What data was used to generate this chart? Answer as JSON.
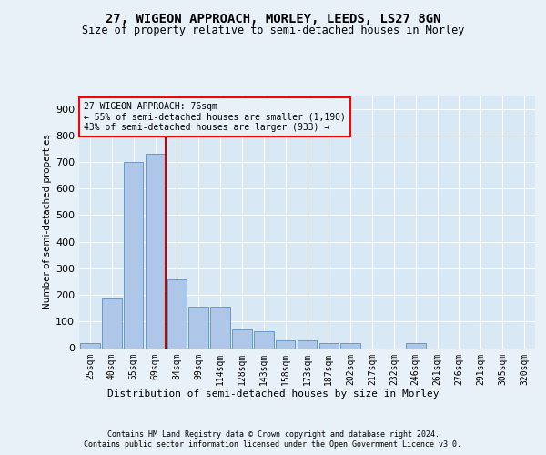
{
  "title1": "27, WIGEON APPROACH, MORLEY, LEEDS, LS27 8GN",
  "title2": "Size of property relative to semi-detached houses in Morley",
  "xlabel": "Distribution of semi-detached houses by size in Morley",
  "ylabel": "Number of semi-detached properties",
  "categories": [
    "25sqm",
    "40sqm",
    "55sqm",
    "69sqm",
    "84sqm",
    "99sqm",
    "114sqm",
    "128sqm",
    "143sqm",
    "158sqm",
    "173sqm",
    "187sqm",
    "202sqm",
    "217sqm",
    "232sqm",
    "246sqm",
    "261sqm",
    "276sqm",
    "291sqm",
    "305sqm",
    "320sqm"
  ],
  "values": [
    20,
    185,
    700,
    730,
    260,
    155,
    155,
    70,
    65,
    30,
    30,
    20,
    20,
    0,
    0,
    20,
    0,
    0,
    0,
    0,
    0
  ],
  "bar_color": "#aec6e8",
  "bar_edge_color": "#5a8fc0",
  "vline_x": 3.5,
  "vline_color": "#cc0000",
  "property_label": "27 WIGEON APPROACH: 76sqm",
  "annotation_smaller": "← 55% of semi-detached houses are smaller (1,190)",
  "annotation_larger": "43% of semi-detached houses are larger (933) →",
  "ylim": [
    0,
    950
  ],
  "yticks": [
    0,
    100,
    200,
    300,
    400,
    500,
    600,
    700,
    800,
    900
  ],
  "footer1": "Contains HM Land Registry data © Crown copyright and database right 2024.",
  "footer2": "Contains public sector information licensed under the Open Government Licence v3.0.",
  "background_color": "#e8f0f8",
  "plot_bg_color": "#d8e8f4"
}
